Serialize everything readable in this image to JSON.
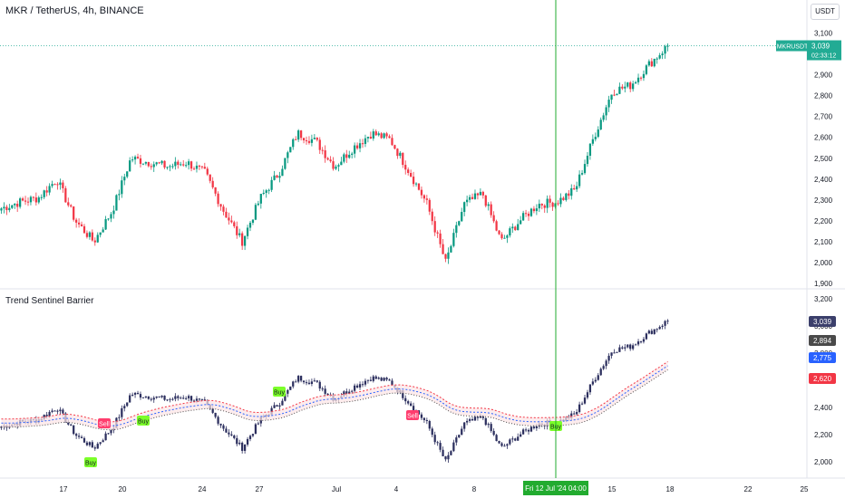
{
  "header": {
    "title": "MKR / TetherUS, 4h, BINANCE",
    "currency": "USDT"
  },
  "main_pane": {
    "price_axis": [
      "3,100",
      "3,000",
      "2,900",
      "2,800",
      "2,700",
      "2,600",
      "2,500",
      "2,400",
      "2,300",
      "2,200",
      "2,100",
      "2,000",
      "1,900"
    ],
    "symbol_tag": "MKRUSDT",
    "last_price": "3,039",
    "countdown": "02:33:12",
    "colors": {
      "up": "#089981",
      "down": "#f23645",
      "tag": "#22ab94",
      "crosshair": "#22ab2f"
    }
  },
  "indicator_pane": {
    "title": "Trend Sentinel Barrier",
    "price_axis": [
      "3,200",
      "3,000",
      "2,800",
      "2,600",
      "2,400",
      "2,200",
      "2,000"
    ],
    "labels": [
      {
        "value": "3,039",
        "color": "#3b3f6b"
      },
      {
        "value": "2,894",
        "color": "#4a4a4a"
      },
      {
        "value": "2,775",
        "color": "#2962ff"
      },
      {
        "value": "2,620",
        "color": "#f23645"
      }
    ],
    "signals": [
      {
        "text": "Sell",
        "kind": "sell"
      },
      {
        "text": "Buy",
        "kind": "buy"
      },
      {
        "text": "Buy",
        "kind": "buy"
      },
      {
        "text": "Buy",
        "kind": "buy"
      },
      {
        "text": "Sell",
        "kind": "sell"
      },
      {
        "text": "Buy",
        "kind": "buy"
      }
    ],
    "colors": {
      "candle": "#2c2f5e",
      "upper": "#f23645",
      "lower": "#2962ff",
      "band_red": "#fce4e6",
      "band_blue": "#dbe6ff",
      "buy": "#7cff2a",
      "sell": "#ff3d6e"
    }
  },
  "time_axis": {
    "ticks": [
      "17",
      "20",
      "24",
      "27",
      "Jul",
      "4",
      "8",
      "15",
      "18",
      "22",
      "25"
    ],
    "crosshair_label": "Fri 12 Jul '24   04:00"
  },
  "chart_data": {
    "type": "candlestick",
    "symbol": "MKR / TetherUS",
    "interval": "4h",
    "exchange": "BINANCE",
    "ylim": [
      1850,
      3150
    ],
    "close_path": [
      [
        "Jun 14",
        2260
      ],
      [
        "Jun 15",
        2290
      ],
      [
        "Jun 16",
        2310
      ],
      [
        "Jun 17",
        2400
      ],
      [
        "Jun 18",
        2200
      ],
      [
        "Jun 18 late",
        2100
      ],
      [
        "Jun 19",
        2250
      ],
      [
        "Jun 19 late",
        2500
      ],
      [
        "Jun 20",
        2480
      ],
      [
        "Jun 21",
        2460
      ],
      [
        "Jun 22",
        2480
      ],
      [
        "Jun 23",
        2430
      ],
      [
        "Jun 24",
        2250
      ],
      [
        "Jun 24 late",
        2100
      ],
      [
        "Jun 25",
        2310
      ],
      [
        "Jun 26",
        2430
      ],
      [
        "Jun 27",
        2620
      ],
      [
        "Jun 28",
        2580
      ],
      [
        "Jun 29",
        2460
      ],
      [
        "Jun 30",
        2550
      ],
      [
        "Jul 1",
        2620
      ],
      [
        "Jul 2",
        2590
      ],
      [
        "Jul 3",
        2440
      ],
      [
        "Jul 4",
        2280
      ],
      [
        "Jul 5",
        2000
      ],
      [
        "Jul 6",
        2280
      ],
      [
        "Jul 7",
        2330
      ],
      [
        "Jul 8",
        2100
      ],
      [
        "Jul 9",
        2200
      ],
      [
        "Jul 10",
        2280
      ],
      [
        "Jul 11",
        2290
      ],
      [
        "Jul 12",
        2350
      ],
      [
        "Jul 13",
        2600
      ],
      [
        "Jul 14",
        2820
      ],
      [
        "Jul 15",
        2850
      ],
      [
        "Jul 16",
        2950
      ],
      [
        "Jul 17",
        3039
      ]
    ],
    "last_price": 3039,
    "crosshair_time": "Fri 12 Jul '24 04:00"
  }
}
